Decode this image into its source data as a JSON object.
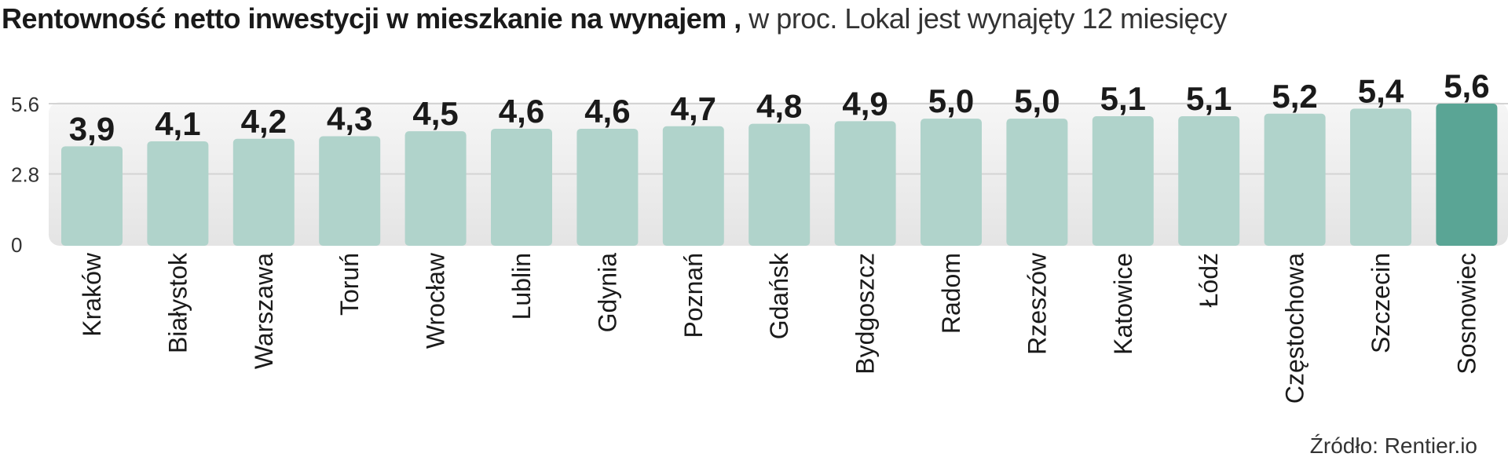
{
  "title": {
    "main": "Rentowność netto inwestycji w mieszkanie na wynajem ,",
    "sub": "w proc. Lokal jest wynajęty 12 miesięcy"
  },
  "source": "Źródło: Rentier.io",
  "colors": {
    "bar": "#b0d3cb",
    "highlight": "#5aa595",
    "plot_bg": "#e9e9e9",
    "grid": "#d4d4d4",
    "text": "#1a1a1a"
  },
  "chart_data": {
    "type": "bar",
    "title": "Rentowność netto inwestycji w mieszkanie na wynajem ,",
    "subtitle": "w proc. Lokal jest wynajęty 12 miesięcy",
    "categories": [
      "Kraków",
      "Białystok",
      "Warszawa",
      "Toruń",
      "Wrocław",
      "Lublin",
      "Gdynia",
      "Poznań",
      "Gdańsk",
      "Bydgoszcz",
      "Radom",
      "Rzeszów",
      "Katowice",
      "Łódź",
      "Częstochowa",
      "Szczecin",
      "Sosnowiec"
    ],
    "values": [
      3.9,
      4.1,
      4.2,
      4.3,
      4.5,
      4.6,
      4.6,
      4.7,
      4.8,
      4.9,
      5.0,
      5.0,
      5.1,
      5.1,
      5.2,
      5.4,
      5.6
    ],
    "value_labels": [
      "3,9",
      "4,1",
      "4,2",
      "4,3",
      "4,5",
      "4,6",
      "4,6",
      "4,7",
      "4,8",
      "4,9",
      "5,0",
      "5,0",
      "5,1",
      "5,1",
      "5,2",
      "5,4",
      "5,6"
    ],
    "highlight_category": "Sosnowiec",
    "yticks": [
      "0",
      "2.8",
      "5.6"
    ],
    "ytick_values": [
      0,
      2.8,
      5.6
    ],
    "ylim": [
      0,
      5.6
    ],
    "xlabel": "",
    "ylabel": "",
    "grid": true,
    "legend": "none"
  }
}
